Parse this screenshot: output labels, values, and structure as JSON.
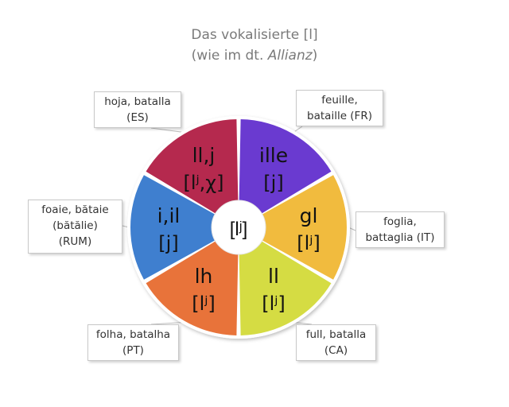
{
  "title_line1": "Das vokalisierte [l]",
  "title_line2_prefix": "(wie im dt. ",
  "title_line2_italic": "Allianz",
  "title_line2_suffix": ")",
  "center_label": "[lʲ]",
  "segments": [
    {
      "id": "fr",
      "grapheme": "ille",
      "ipa": "[j]",
      "color": "#6a3ad0",
      "callout": "feuille,\nbataille (FR)"
    },
    {
      "id": "it",
      "grapheme": "gl",
      "ipa": "[lʲ]",
      "color": "#f1bb3e",
      "callout": "foglia,\nbattaglia (IT)"
    },
    {
      "id": "ca",
      "grapheme": "ll",
      "ipa": "[lʲ]",
      "color": "#d5dc43",
      "callout": "full, batalla\n(CA)"
    },
    {
      "id": "pt",
      "grapheme": "lh",
      "ipa": "[lʲ]",
      "color": "#e8733a",
      "callout": "folha, batalha\n(PT)"
    },
    {
      "id": "rum",
      "grapheme": "i,il",
      "ipa": "[j]",
      "color": "#3f7fcf",
      "callout": "foaie, bătaie\n(bătălie)\n(RUM)"
    },
    {
      "id": "es",
      "grapheme": "ll,j",
      "ipa": "[lʲ,χ]",
      "color": "#b5294e",
      "callout": "hoja, batalla\n(ES)"
    }
  ]
}
